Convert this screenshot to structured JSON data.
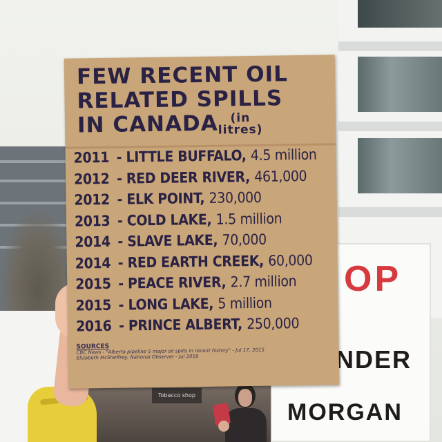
{
  "cardboard_sign": {
    "headline": [
      "FEW RECENT OIL",
      "RELATED SPILLS",
      "IN CANADA"
    ],
    "units_line1": "(in",
    "units_line2": "litres)",
    "spills": [
      {
        "year": "2011",
        "place": "LITTLE BUFFALO,",
        "volume": "4.5 million"
      },
      {
        "year": "2012",
        "place": "RED DEER RIVER,",
        "volume": "461,000"
      },
      {
        "year": "2012",
        "place": "ELK POINT,",
        "volume": "230,000"
      },
      {
        "year": "2013",
        "place": "COLD LAKE,",
        "volume": "1.5 million"
      },
      {
        "year": "2014",
        "place": "SLAVE LAKE,",
        "volume": "70,000"
      },
      {
        "year": "2014",
        "place": "RED EARTH CREEK,",
        "volume": "60,000"
      },
      {
        "year": "2015",
        "place": "PEACE RIVER,",
        "volume": "2.7 million"
      },
      {
        "year": "2015",
        "place": "LONG LAKE,",
        "volume": "5 million"
      },
      {
        "year": "2016",
        "place": "PRINCE ALBERT,",
        "volume": "250,000"
      }
    ],
    "sources_header": "SOURCES",
    "sources_lines": [
      "CBC News - \"Alberta pipeline 5 major oil spills in recent history\" - Jul 17, 2015",
      "Elizabeth McSheffrey, National Observer - Jul 2016"
    ]
  },
  "protest_sign": {
    "line1": "OP",
    "line2": "NDER",
    "line3": "MORGAN"
  },
  "storefront_sign": "Tobacco shop",
  "colors": {
    "cardboard": "#c9a57a",
    "marker_ink": "#2a2244",
    "protest_red": "#d63a3f",
    "sleeve_yellow": "#e8cd3a"
  }
}
